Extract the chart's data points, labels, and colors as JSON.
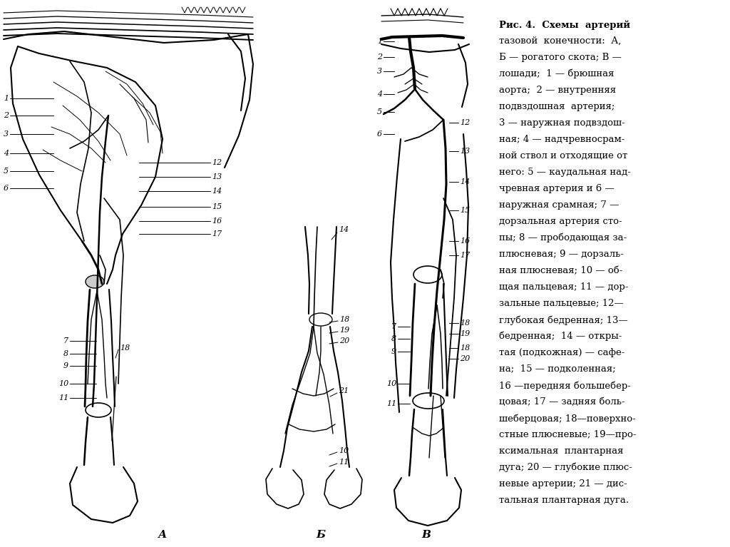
{
  "background_color": "#ffffff",
  "fig_width": 10.24,
  "fig_height": 7.67,
  "panel_A_label": "А",
  "panel_B_label": "Б",
  "panel_V_label": "В",
  "text_color": "#000000",
  "line_color": "#000000",
  "legend_lines": [
    "Рис. 4.  Схемы  артерий",
    "тазовой  конечности:  А,",
    "Б — рогатого скота; В —",
    "лошади;  1 — брюшная",
    "аорта;  2 — внутренняя",
    "подвздошная  артерия;",
    "3 — наружная подвздош-",
    "ная; 4 — надчревносрам-",
    "ной ствол и отходящие от",
    "него: 5 — каудальная над-",
    "чревная артерия и 6 —",
    "наружная срамная; 7 —",
    "дорзальная артерия сто-",
    "пы; 8 — прободающая за-",
    "плюсневая; 9 — дорзаль-",
    "ная плюсневая; 10 — об-",
    "щая пальцевая; 11 — дор-",
    "зальные пальцевые; 12—",
    "глубокая бедренная; 13—",
    "бедренная;  14 — откры-",
    "тая (подкожная) — сафе-",
    "на;  15 — подколенная;",
    "16 —передняя большебер-",
    "цовая; 17 — задняя боль-",
    "шеберцовая; 18—поверхно-",
    "стные плюсневые; 19—про-",
    "ксимальная  плантарная",
    "дуга; 20 — глубокие плюс-",
    "невые артерии; 21 — дис-",
    "тальная плантарная дуга."
  ]
}
